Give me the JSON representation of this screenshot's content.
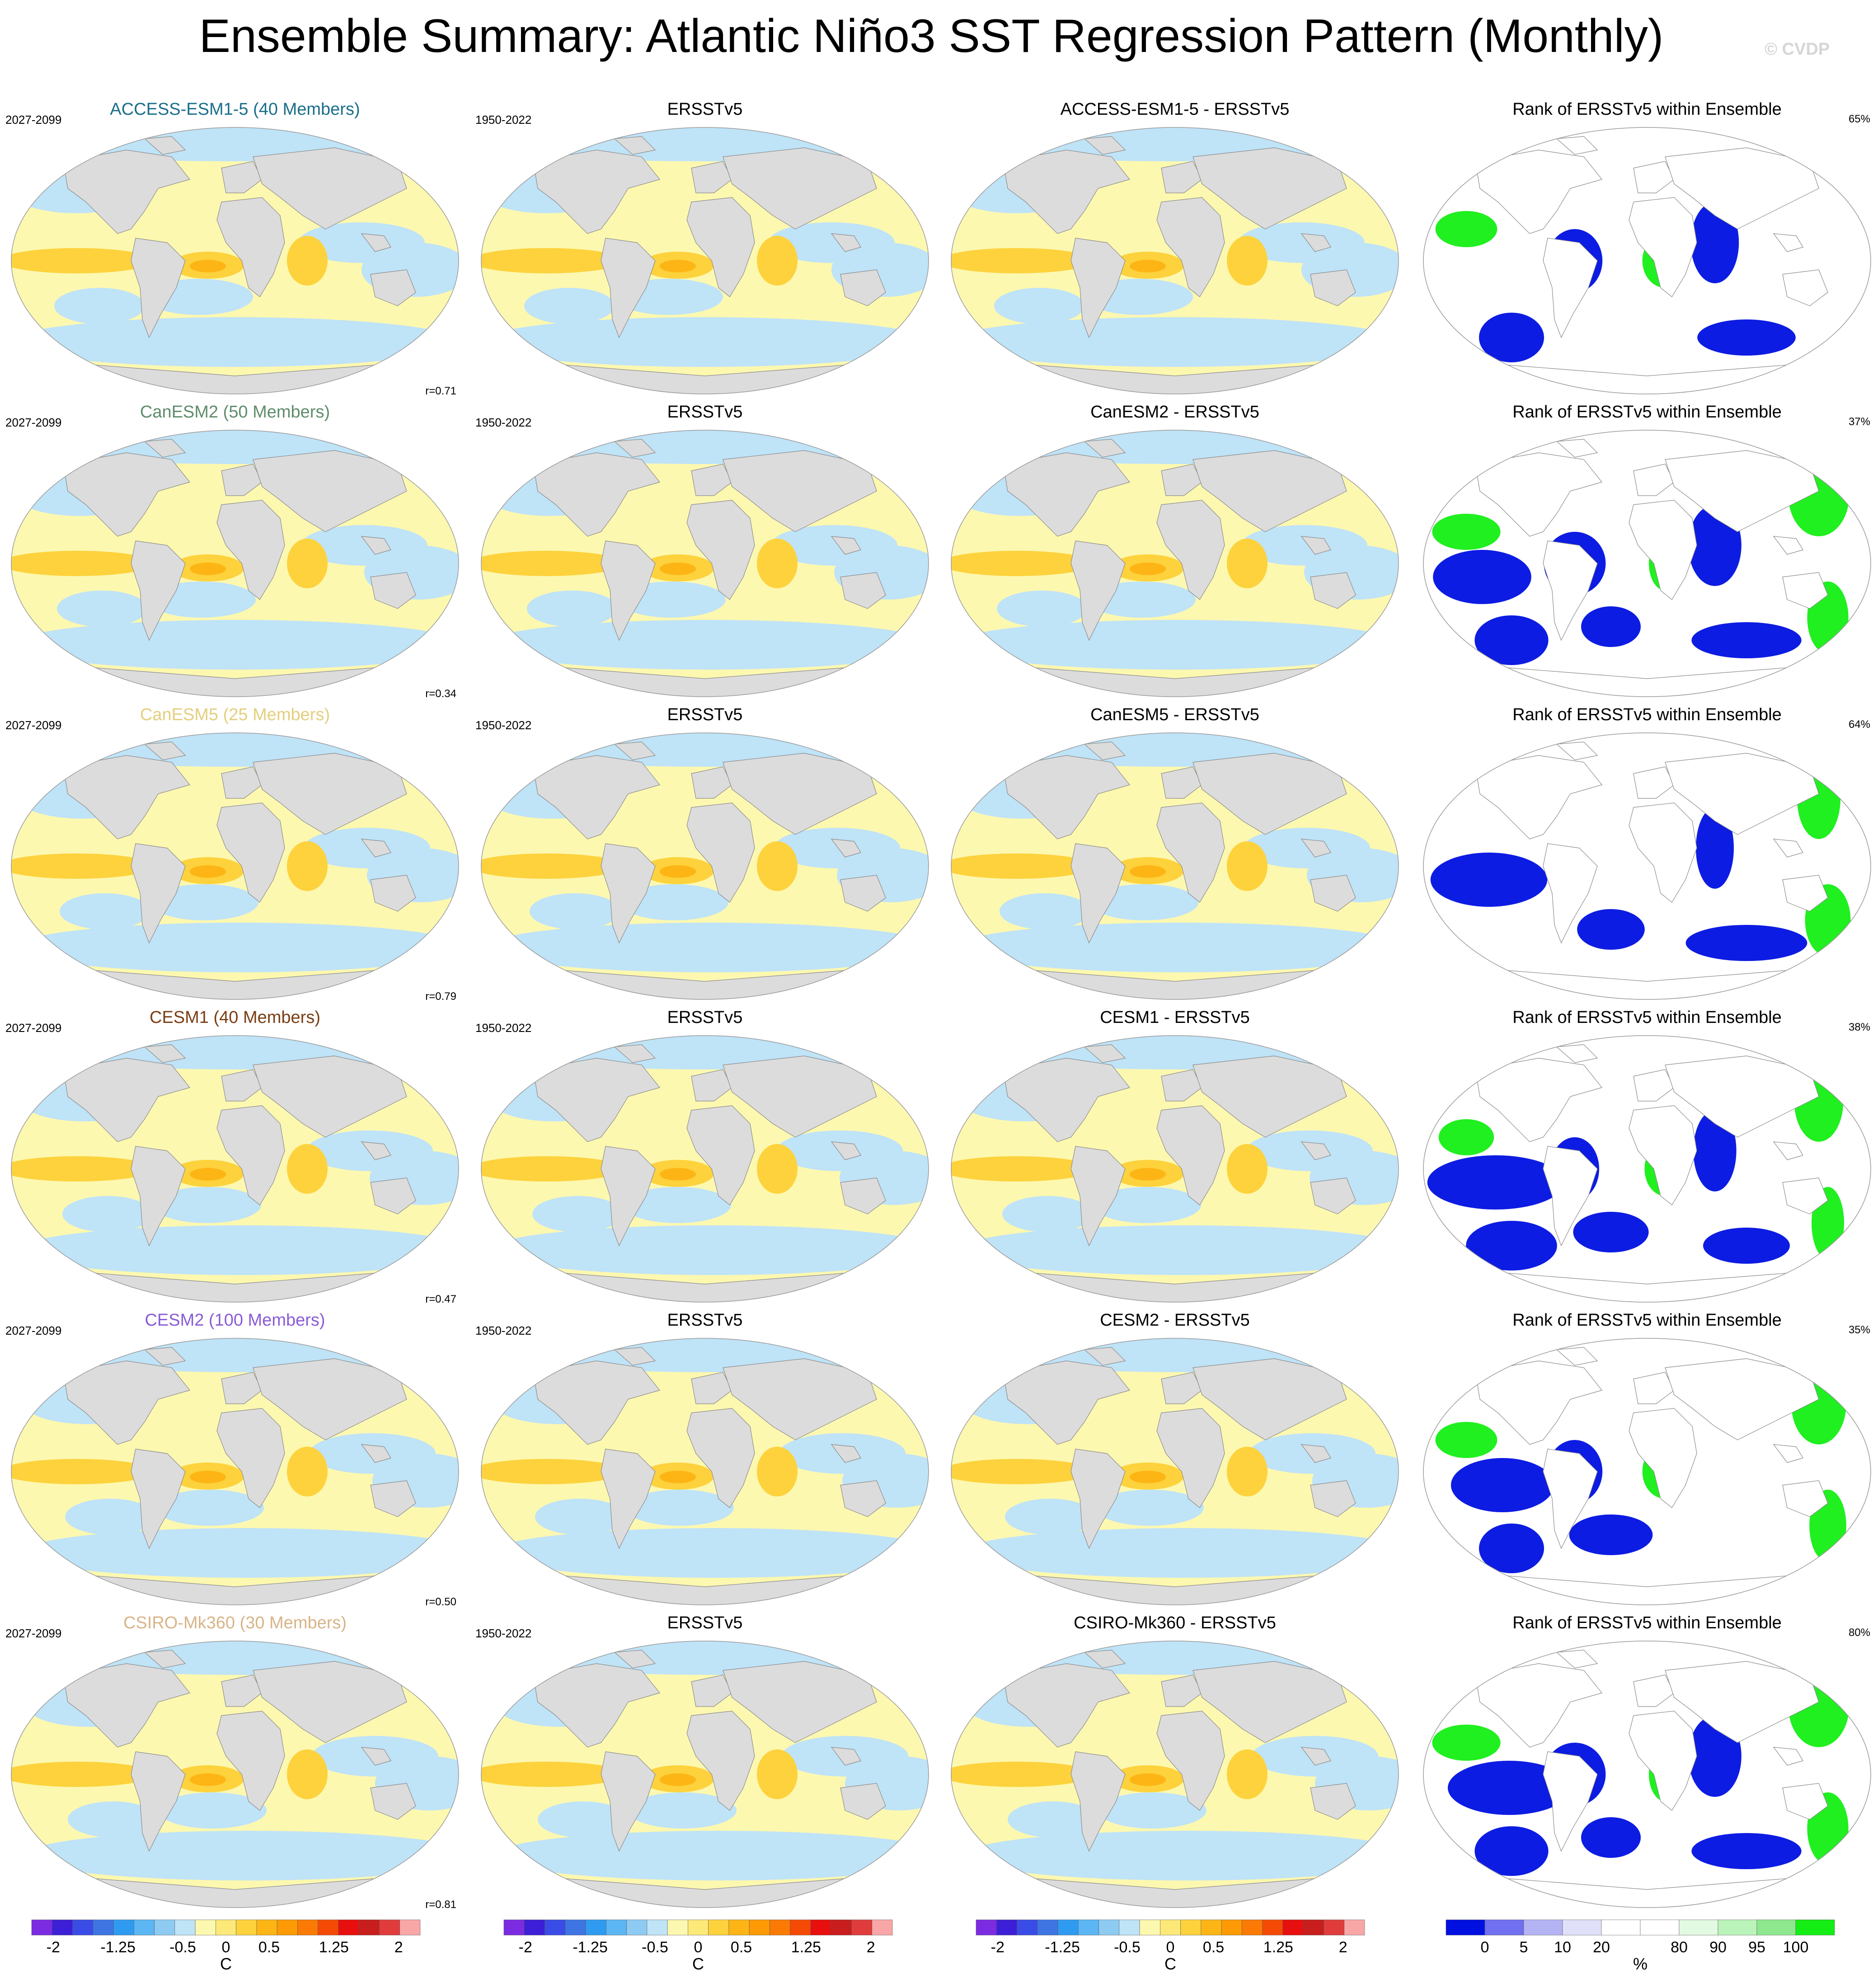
{
  "title": "Ensemble Summary: Atlantic Niño3 SST Regression Pattern (Monthly)",
  "watermark": "© CVDP",
  "rows": [
    {
      "model": "ACCESS-ESM1-5 (40 Members)",
      "model_color": "#1a6e8a",
      "period": "2027-2099",
      "obs": "ERSSTv5",
      "obs_period": "1950-2022",
      "diff": "ACCESS-ESM1-5 - ERSSTv5",
      "rank_title": "Rank of ERSSTv5 within Ensemble",
      "rank_pct": "65%",
      "r": "r=0.71"
    },
    {
      "model": "CanESM2 (50 Members)",
      "model_color": "#5f8c6a",
      "period": "2027-2099",
      "obs": "ERSSTv5",
      "obs_period": "1950-2022",
      "diff": "CanESM2 - ERSSTv5",
      "rank_title": "Rank of ERSSTv5 within Ensemble",
      "rank_pct": "37%",
      "r": "r=0.34"
    },
    {
      "model": "CanESM5 (25 Members)",
      "model_color": "#e3cf7e",
      "period": "2027-2099",
      "obs": "ERSSTv5",
      "obs_period": "1950-2022",
      "diff": "CanESM5 - ERSSTv5",
      "rank_title": "Rank of ERSSTv5 within Ensemble",
      "rank_pct": "64%",
      "r": "r=0.79"
    },
    {
      "model": "CESM1 (40 Members)",
      "model_color": "#7a3d12",
      "period": "2027-2099",
      "obs": "ERSSTv5",
      "obs_period": "1950-2022",
      "diff": "CESM1 - ERSSTv5",
      "rank_title": "Rank of ERSSTv5 within Ensemble",
      "rank_pct": "38%",
      "r": "r=0.47"
    },
    {
      "model": "CESM2 (100 Members)",
      "model_color": "#8a5cd6",
      "period": "2027-2099",
      "obs": "ERSSTv5",
      "obs_period": "1950-2022",
      "diff": "CESM2 - ERSSTv5",
      "rank_title": "Rank of ERSSTv5 within Ensemble",
      "rank_pct": "35%",
      "r": "r=0.50"
    },
    {
      "model": "CSIRO-Mk360 (30 Members)",
      "model_color": "#d8b488",
      "period": "2027-2099",
      "obs": "ERSSTv5",
      "obs_period": "1950-2022",
      "diff": "CSIRO-Mk360 - ERSSTv5",
      "rank_title": "Rank of ERSSTv5 within Ensemble",
      "rank_pct": "80%",
      "r": "r=0.81"
    }
  ],
  "sst_colorbar": {
    "unit": "C",
    "colors": [
      "#7b2be0",
      "#3c1fd6",
      "#3a4ce6",
      "#3f74e3",
      "#2f9bf0",
      "#5cb6f3",
      "#8ecbf2",
      "#bfe3f7",
      "#fdf8b0",
      "#fde978",
      "#fdd23c",
      "#fdb515",
      "#fd9a05",
      "#fb7a05",
      "#f44a05",
      "#e80f0f",
      "#c81e1e",
      "#e03c3c",
      "#f8a6a6"
    ],
    "ticks": [
      {
        "v": -2,
        "label": "-2"
      },
      {
        "v": -1.25,
        "label": "-1.25"
      },
      {
        "v": -0.5,
        "label": "-0.5"
      },
      {
        "v": 0,
        "label": "0"
      },
      {
        "v": 0.5,
        "label": "0.5"
      },
      {
        "v": 1.25,
        "label": "1.25"
      },
      {
        "v": 2,
        "label": "2"
      }
    ]
  },
  "rank_colorbar": {
    "unit": "%",
    "colors": [
      "#0010e0",
      "#7070f0",
      "#b4b4f4",
      "#e0e0f8",
      "#ffffff",
      "#ffffff",
      "#e2fae2",
      "#baf4ba",
      "#8ee88e",
      "#14ee14"
    ],
    "labels": [
      "0",
      "5",
      "10",
      "20",
      "80",
      "90",
      "95",
      "100"
    ]
  },
  "colors": {
    "land": "#dcdcdc",
    "ocean_pos": "#fdf8b0",
    "ocean_neg": "#bfe3f7",
    "warm": "#fdd23c",
    "warm2": "#fdb515",
    "rank_low": "#0010e0",
    "rank_high": "#14ee14"
  }
}
